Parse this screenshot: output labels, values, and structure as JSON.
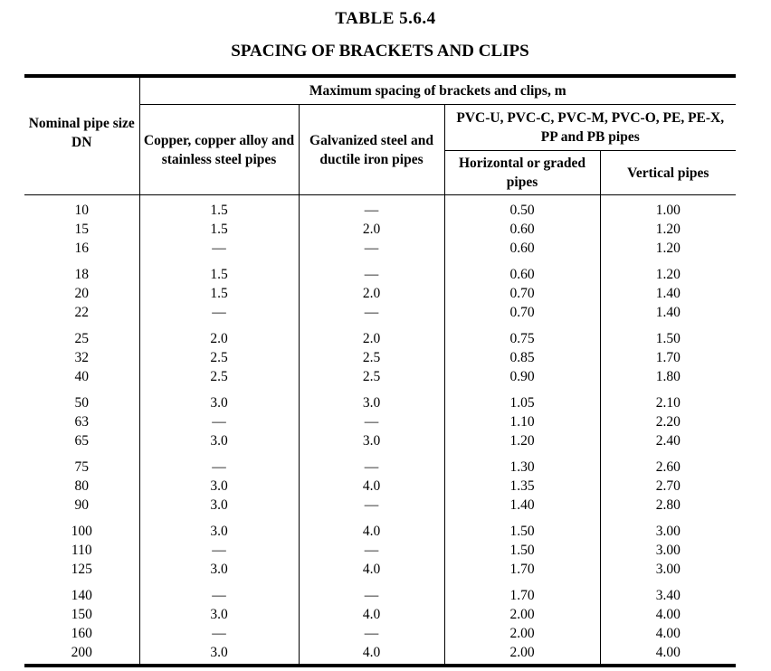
{
  "table_number": "TABLE    5.6.4",
  "title": "SPACING OF BRACKETS AND CLIPS",
  "headers": {
    "nominal_size": "Nominal pipe size DN",
    "max_spacing": "Maximum spacing of brackets and clips, m",
    "copper": "Copper, copper alloy and stainless steel pipes",
    "galvanized": "Galvanized steel and ductile iron pipes",
    "pvc_group": "PVC-U, PVC-C, PVC-M, PVC-O, PE, PE-X, PP and PB pipes",
    "horizontal": "Horizontal or graded pipes",
    "vertical": "Vertical pipes"
  },
  "groups": [
    [
      [
        "10",
        "1.5",
        "—",
        "0.50",
        "1.00"
      ],
      [
        "15",
        "1.5",
        "2.0",
        "0.60",
        "1.20"
      ],
      [
        "16",
        "—",
        "—",
        "0.60",
        "1.20"
      ]
    ],
    [
      [
        "18",
        "1.5",
        "—",
        "0.60",
        "1.20"
      ],
      [
        "20",
        "1.5",
        "2.0",
        "0.70",
        "1.40"
      ],
      [
        "22",
        "—",
        "—",
        "0.70",
        "1.40"
      ]
    ],
    [
      [
        "25",
        "2.0",
        "2.0",
        "0.75",
        "1.50"
      ],
      [
        "32",
        "2.5",
        "2.5",
        "0.85",
        "1.70"
      ],
      [
        "40",
        "2.5",
        "2.5",
        "0.90",
        "1.80"
      ]
    ],
    [
      [
        "50",
        "3.0",
        "3.0",
        "1.05",
        "2.10"
      ],
      [
        "63",
        "—",
        "—",
        "1.10",
        "2.20"
      ],
      [
        "65",
        "3.0",
        "3.0",
        "1.20",
        "2.40"
      ]
    ],
    [
      [
        "75",
        "—",
        "—",
        "1.30",
        "2.60"
      ],
      [
        "80",
        "3.0",
        "4.0",
        "1.35",
        "2.70"
      ],
      [
        "90",
        "3.0",
        "—",
        "1.40",
        "2.80"
      ]
    ],
    [
      [
        "100",
        "3.0",
        "4.0",
        "1.50",
        "3.00"
      ],
      [
        "110",
        "—",
        "—",
        "1.50",
        "3.00"
      ],
      [
        "125",
        "3.0",
        "4.0",
        "1.70",
        "3.00"
      ]
    ],
    [
      [
        "140",
        "—",
        "—",
        "1.70",
        "3.40"
      ],
      [
        "150",
        "3.0",
        "4.0",
        "2.00",
        "4.00"
      ],
      [
        "160",
        "—",
        "—",
        "2.00",
        "4.00"
      ],
      [
        "200",
        "3.0",
        "4.0",
        "2.00",
        "4.00"
      ]
    ]
  ]
}
